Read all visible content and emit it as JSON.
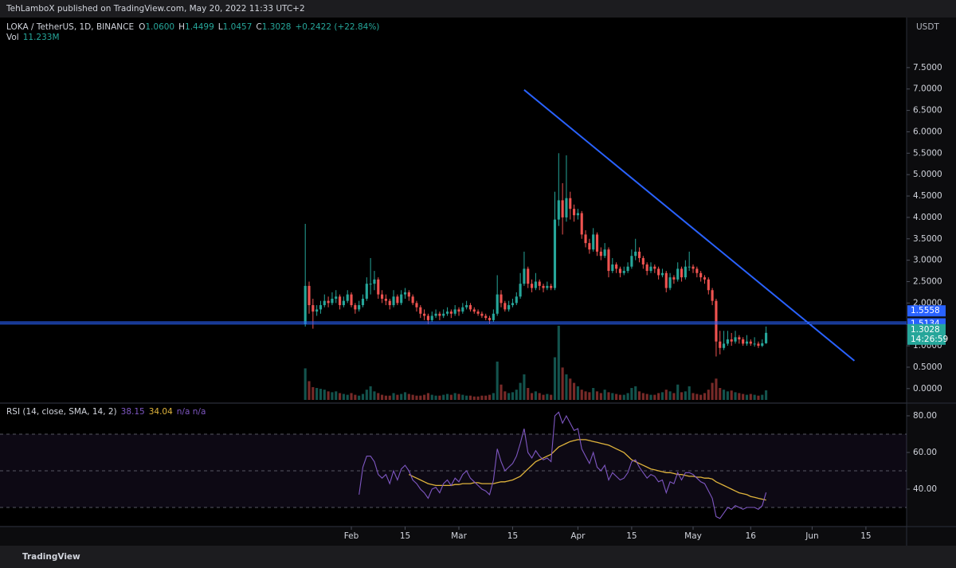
{
  "header": "TehLamboX published on TradingView.com, May 20, 2022 11:33 UTC+2",
  "footer": "TradingView",
  "chart_data": {
    "type": "candlestick",
    "title": "LOKA / TetherUS, 1D, BINANCE",
    "ohlc_legend": [
      {
        "key": "O",
        "value": "1.0600"
      },
      {
        "key": "H",
        "value": "1.4499"
      },
      {
        "key": "L",
        "value": "1.0457"
      },
      {
        "key": "C",
        "value": "1.3028"
      }
    ],
    "change": "+0.2422 (+22.84%)",
    "volume_legend": {
      "key": "Vol",
      "value": "11.233M"
    },
    "y_axis_label": "USDT",
    "up_color": "#26a69a",
    "down_color": "#ef5350",
    "xlim": [
      -79.5,
      156.6
    ],
    "xticks": [
      {
        "value": 12,
        "label": "Feb"
      },
      {
        "value": 26,
        "label": "15"
      },
      {
        "value": 40,
        "label": "Mar"
      },
      {
        "value": 54,
        "label": "15"
      },
      {
        "value": 71,
        "label": "Apr"
      },
      {
        "value": 85,
        "label": "15"
      },
      {
        "value": 101,
        "label": "May"
      },
      {
        "value": 116,
        "label": "16"
      },
      {
        "value": 132,
        "label": "Jun"
      },
      {
        "value": 146,
        "label": "15"
      }
    ],
    "ylim": [
      -0.32,
      8.67
    ],
    "yticks": [
      {
        "value": 0,
        "label": "0.0000"
      },
      {
        "value": 0.5,
        "label": "0.5000"
      },
      {
        "value": 1,
        "label": "1.0000"
      },
      {
        "value": 1.5,
        "label": "1.5000"
      },
      {
        "value": 2,
        "label": "2.0000"
      },
      {
        "value": 2.5,
        "label": "2.5000"
      },
      {
        "value": 3,
        "label": "3.0000"
      },
      {
        "value": 3.5,
        "label": "3.5000"
      },
      {
        "value": 4,
        "label": "4.0000"
      },
      {
        "value": 4.5,
        "label": "4.5000"
      },
      {
        "value": 5,
        "label": "5.0000"
      },
      {
        "value": 5.5,
        "label": "5.5000"
      },
      {
        "value": 6,
        "label": "6.0000"
      },
      {
        "value": 6.5,
        "label": "6.5000"
      },
      {
        "value": 7,
        "label": "7.0000"
      },
      {
        "value": 7.5,
        "label": "7.5000"
      }
    ],
    "open": [
      1.5,
      2.4,
      1.95,
      1.8,
      1.85,
      1.95,
      2.05,
      2.0,
      2.1,
      2.15,
      1.95,
      2.05,
      2.2,
      1.95,
      1.85,
      1.95,
      2.1,
      2.45,
      2.45,
      2.55,
      2.2,
      2.1,
      2.05,
      1.95,
      2.15,
      2.0,
      2.2,
      2.25,
      2.15,
      2.0,
      1.9,
      1.75,
      1.7,
      1.6,
      1.7,
      1.75,
      1.7,
      1.75,
      1.8,
      1.75,
      1.85,
      1.8,
      1.9,
      1.95,
      1.85,
      1.8,
      1.75,
      1.7,
      1.65,
      1.6,
      1.75,
      2.2,
      2.0,
      1.85,
      1.95,
      2.0,
      2.15,
      2.45,
      2.8,
      2.45,
      2.35,
      2.5,
      2.4,
      2.35,
      2.4,
      2.35,
      3.95,
      4.4,
      4.0,
      4.45,
      4.2,
      4.05,
      4.1,
      3.6,
      3.4,
      3.25,
      3.6,
      3.2,
      3.1,
      3.25,
      2.75,
      2.9,
      2.8,
      2.7,
      2.75,
      2.85,
      3.1,
      3.2,
      3.05,
      2.9,
      2.75,
      2.85,
      2.8,
      2.65,
      2.7,
      2.35,
      2.6,
      2.55,
      2.8,
      2.6,
      2.85,
      2.85,
      2.8,
      2.7,
      2.6,
      2.55,
      2.3,
      2.05,
      1.1,
      0.95,
      1.05,
      1.15,
      1.1,
      1.2,
      1.15,
      1.05,
      1.1,
      1.05,
      1.05,
      1.0,
      1.06
    ],
    "high": [
      3.85,
      2.5,
      2.1,
      1.95,
      2.05,
      2.2,
      2.15,
      2.25,
      2.3,
      2.2,
      2.15,
      2.3,
      2.25,
      2.0,
      2.05,
      2.2,
      2.6,
      3.05,
      2.75,
      2.6,
      2.3,
      2.2,
      2.1,
      2.3,
      2.2,
      2.3,
      2.35,
      2.3,
      2.2,
      2.05,
      1.95,
      1.85,
      1.75,
      1.8,
      1.85,
      1.8,
      1.85,
      1.9,
      1.85,
      1.95,
      1.9,
      2.0,
      2.05,
      2.0,
      1.9,
      1.85,
      1.8,
      1.75,
      1.7,
      1.85,
      2.65,
      2.3,
      2.05,
      2.05,
      2.1,
      2.25,
      2.7,
      3.2,
      2.85,
      2.55,
      2.7,
      2.55,
      2.45,
      2.5,
      2.45,
      4.6,
      5.5,
      4.8,
      5.45,
      4.6,
      4.3,
      4.2,
      4.15,
      3.7,
      3.5,
      3.75,
      3.65,
      3.3,
      3.4,
      3.3,
      3.05,
      2.95,
      2.85,
      2.85,
      2.95,
      3.25,
      3.5,
      3.3,
      3.1,
      2.95,
      2.95,
      2.9,
      2.85,
      2.8,
      2.75,
      2.7,
      2.65,
      2.95,
      2.85,
      3.0,
      3.2,
      2.9,
      2.85,
      2.75,
      2.65,
      2.6,
      2.35,
      2.1,
      1.35,
      1.35,
      1.35,
      1.3,
      1.35,
      1.25,
      1.2,
      1.25,
      1.15,
      1.2,
      1.1,
      1.15,
      1.4499
    ],
    "low": [
      1.45,
      1.75,
      1.4,
      1.7,
      1.75,
      1.9,
      1.9,
      1.95,
      2.0,
      1.85,
      1.9,
      2.0,
      1.9,
      1.75,
      1.8,
      1.9,
      2.05,
      2.2,
      2.3,
      2.1,
      2.0,
      1.95,
      1.85,
      1.9,
      1.95,
      1.95,
      2.1,
      2.05,
      1.95,
      1.8,
      1.65,
      1.6,
      1.5,
      1.55,
      1.65,
      1.6,
      1.65,
      1.7,
      1.65,
      1.7,
      1.7,
      1.75,
      1.85,
      1.8,
      1.75,
      1.7,
      1.65,
      1.6,
      1.52,
      1.55,
      1.7,
      1.9,
      1.8,
      1.8,
      1.9,
      1.95,
      2.1,
      2.4,
      2.35,
      2.25,
      2.3,
      2.3,
      2.25,
      2.3,
      2.3,
      2.3,
      3.8,
      3.6,
      3.9,
      3.95,
      3.9,
      3.95,
      3.5,
      3.3,
      3.15,
      3.2,
      3.1,
      3.0,
      3.05,
      2.6,
      2.7,
      2.7,
      2.6,
      2.65,
      2.7,
      2.8,
      3.0,
      2.95,
      2.8,
      2.65,
      2.7,
      2.7,
      2.55,
      2.6,
      2.25,
      2.3,
      2.45,
      2.5,
      2.5,
      2.55,
      2.75,
      2.7,
      2.6,
      2.5,
      2.45,
      2.2,
      1.95,
      0.75,
      0.8,
      0.9,
      1.0,
      1.0,
      1.05,
      1.05,
      1.0,
      1.0,
      1.0,
      0.98,
      0.95,
      0.97,
      1.0457
    ],
    "close": [
      2.4,
      1.95,
      1.8,
      1.85,
      1.95,
      2.05,
      2.0,
      2.1,
      2.15,
      1.95,
      2.05,
      2.2,
      1.95,
      1.85,
      1.95,
      2.1,
      2.45,
      2.45,
      2.55,
      2.2,
      2.1,
      2.05,
      1.95,
      2.15,
      2.0,
      2.2,
      2.25,
      2.15,
      2.0,
      1.9,
      1.75,
      1.7,
      1.6,
      1.7,
      1.75,
      1.7,
      1.75,
      1.8,
      1.75,
      1.85,
      1.8,
      1.9,
      1.95,
      1.85,
      1.8,
      1.75,
      1.7,
      1.65,
      1.6,
      1.75,
      2.2,
      2.0,
      1.85,
      1.95,
      2.0,
      2.15,
      2.45,
      2.8,
      2.45,
      2.35,
      2.5,
      2.4,
      2.35,
      2.4,
      2.35,
      3.95,
      4.4,
      4.0,
      4.45,
      4.2,
      4.05,
      4.1,
      3.6,
      3.4,
      3.25,
      3.6,
      3.2,
      3.1,
      3.25,
      2.75,
      2.9,
      2.8,
      2.7,
      2.75,
      2.85,
      3.1,
      3.2,
      3.05,
      2.9,
      2.75,
      2.85,
      2.8,
      2.65,
      2.7,
      2.35,
      2.6,
      2.55,
      2.8,
      2.6,
      2.85,
      2.85,
      2.8,
      2.7,
      2.6,
      2.55,
      2.3,
      2.05,
      1.1,
      0.95,
      1.05,
      1.15,
      1.1,
      1.2,
      1.15,
      1.05,
      1.1,
      1.05,
      1.05,
      1.0,
      1.06,
      1.3028
    ],
    "volume": [
      37,
      22,
      15,
      14,
      13,
      12,
      10,
      9,
      10,
      8,
      7,
      6,
      8,
      6,
      5,
      7,
      12,
      16,
      10,
      8,
      6,
      5,
      5,
      8,
      6,
      7,
      9,
      7,
      6,
      5,
      5,
      6,
      8,
      6,
      5,
      5,
      6,
      7,
      6,
      8,
      7,
      6,
      5,
      5,
      4,
      4,
      5,
      5,
      6,
      8,
      45,
      18,
      10,
      8,
      9,
      12,
      20,
      30,
      14,
      8,
      10,
      8,
      6,
      7,
      6,
      50,
      87,
      38,
      30,
      25,
      20,
      16,
      12,
      10,
      9,
      14,
      10,
      8,
      12,
      9,
      8,
      7,
      6,
      6,
      8,
      14,
      16,
      10,
      8,
      7,
      6,
      6,
      8,
      9,
      12,
      10,
      8,
      18,
      9,
      10,
      16,
      8,
      7,
      6,
      8,
      12,
      20,
      25,
      14,
      12,
      10,
      11,
      9,
      8,
      7,
      6,
      7,
      6,
      5,
      6,
      11.233
    ],
    "horizontal_lines": [
      {
        "value": 1.5558,
        "color": "#2962ff"
      },
      {
        "value": 1.5134,
        "color": "#2962ff"
      }
    ],
    "trendline": {
      "x": [
        57,
        143
      ],
      "y": [
        6.98,
        0.65
      ],
      "color": "#2962ff"
    },
    "countdown": "14:26:59",
    "rsi": {
      "title": "RSI (14, close, SMA, 14, 2)",
      "color": "#7e57c2",
      "sma_color": "#e0b43c",
      "tail": "n/a n/a",
      "ylim": [
        20,
        86.5
      ],
      "yticks": [
        {
          "value": 40,
          "label": "40.00"
        },
        {
          "value": 60,
          "label": "60.00"
        },
        {
          "value": 80,
          "label": "80.00"
        }
      ],
      "bands": [
        70,
        50,
        30
      ],
      "values": [
        null,
        null,
        null,
        null,
        null,
        null,
        null,
        null,
        null,
        null,
        null,
        null,
        null,
        null,
        37,
        52,
        58,
        58,
        55,
        48,
        46,
        48,
        43,
        50,
        45,
        51,
        53,
        50,
        45,
        43,
        40,
        38,
        35,
        40,
        41,
        38,
        43,
        45,
        42,
        46,
        44,
        48,
        50,
        46,
        44,
        42,
        40,
        39,
        37,
        45,
        62,
        55,
        50,
        52,
        54,
        58,
        65,
        73,
        60,
        57,
        61,
        58,
        56,
        57,
        55,
        80,
        82,
        76,
        80,
        76,
        72,
        73,
        62,
        58,
        54,
        60,
        52,
        50,
        53,
        45,
        49,
        47,
        45,
        46,
        49,
        55,
        56,
        52,
        49,
        46,
        48,
        47,
        44,
        45,
        38,
        44,
        43,
        49,
        45,
        49,
        49,
        48,
        46,
        44,
        43,
        39,
        35,
        25,
        24,
        27,
        30,
        29,
        31,
        30,
        29,
        30,
        30,
        30,
        29,
        31,
        38.15
      ],
      "sma": [
        null,
        null,
        null,
        null,
        null,
        null,
        null,
        null,
        null,
        null,
        null,
        null,
        null,
        null,
        null,
        null,
        null,
        null,
        null,
        null,
        null,
        null,
        null,
        null,
        null,
        null,
        null,
        48,
        47,
        46,
        45,
        44,
        43,
        42.5,
        42,
        42,
        42,
        42,
        42,
        42.5,
        42.5,
        43,
        43,
        43,
        43.5,
        43.5,
        43,
        43,
        43,
        43,
        43.5,
        44,
        44,
        44.5,
        45,
        46,
        47,
        49,
        51,
        53,
        55,
        56,
        57,
        58,
        59,
        61,
        63,
        64,
        65,
        66,
        66.5,
        67,
        67,
        67,
        66.5,
        66,
        65.5,
        65,
        64.5,
        64,
        63,
        62,
        61,
        60,
        58,
        56,
        55,
        54,
        53,
        52,
        51,
        50.5,
        50,
        49.5,
        49,
        49,
        48.5,
        48,
        48,
        47.5,
        47,
        47,
        46.5,
        46.5,
        46,
        46,
        45.5,
        44,
        43,
        42,
        41,
        40,
        39,
        38,
        37.5,
        37,
        36,
        35.5,
        35,
        34.5,
        34.04
      ]
    }
  }
}
